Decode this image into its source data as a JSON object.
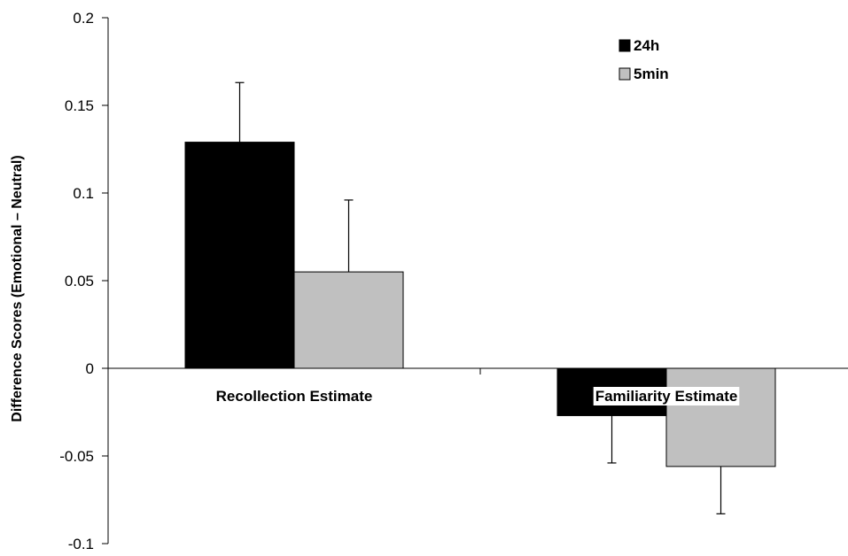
{
  "chart_data": {
    "type": "bar",
    "categories": [
      "Recollection Estimate",
      "Familiarity Estimate"
    ],
    "series": [
      {
        "name": "24h",
        "color": "#000000",
        "values": [
          0.129,
          -0.027
        ],
        "errors": [
          0.034,
          0.027
        ]
      },
      {
        "name": "5min",
        "color": "#c0c0c0",
        "values": [
          0.055,
          -0.056
        ],
        "errors": [
          0.041,
          0.027
        ]
      }
    ],
    "ylabel": "Difference Scores (Emotional – Neutral)",
    "xlabel": "",
    "ylim": [
      -0.1,
      0.2
    ],
    "yticks": [
      0.2,
      0.15,
      0.1,
      0.05,
      0,
      -0.05,
      -0.1
    ],
    "ytick_labels": [
      "0.2",
      "0.15",
      "0.1",
      "0.05",
      "0",
      "-0.05",
      "-0.1"
    ],
    "legend_position": "top-right",
    "grid": false,
    "error_bars": true
  }
}
